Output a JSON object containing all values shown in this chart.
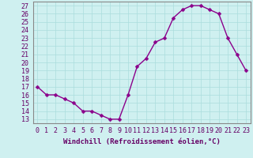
{
  "x": [
    0,
    1,
    2,
    3,
    4,
    5,
    6,
    7,
    8,
    9,
    10,
    11,
    12,
    13,
    14,
    15,
    16,
    17,
    18,
    19,
    20,
    21,
    22,
    23
  ],
  "y": [
    17,
    16,
    16,
    15.5,
    15,
    14,
    14,
    13.5,
    13,
    13,
    16,
    19.5,
    20.5,
    22.5,
    23,
    25.5,
    26.5,
    27,
    27,
    26.5,
    26,
    23,
    21,
    19
  ],
  "line_color": "#8B008B",
  "marker": "D",
  "markersize": 2.5,
  "linewidth": 1.0,
  "xlabel": "Windchill (Refroidissement éolien,°C)",
  "xlabel_fontsize": 6.5,
  "ylabel_ticks": [
    13,
    14,
    15,
    16,
    17,
    18,
    19,
    20,
    21,
    22,
    23,
    24,
    25,
    26,
    27
  ],
  "xticks": [
    0,
    1,
    2,
    3,
    4,
    5,
    6,
    7,
    8,
    9,
    10,
    11,
    12,
    13,
    14,
    15,
    16,
    17,
    18,
    19,
    20,
    21,
    22,
    23
  ],
  "xlim": [
    -0.5,
    23.5
  ],
  "ylim": [
    12.5,
    27.5
  ],
  "bg_color": "#cff0f0",
  "grid_color": "#aadddd",
  "tick_fontsize": 6.0,
  "marker_color": "#8B008B",
  "label_color": "#660066",
  "spine_color": "#888888"
}
